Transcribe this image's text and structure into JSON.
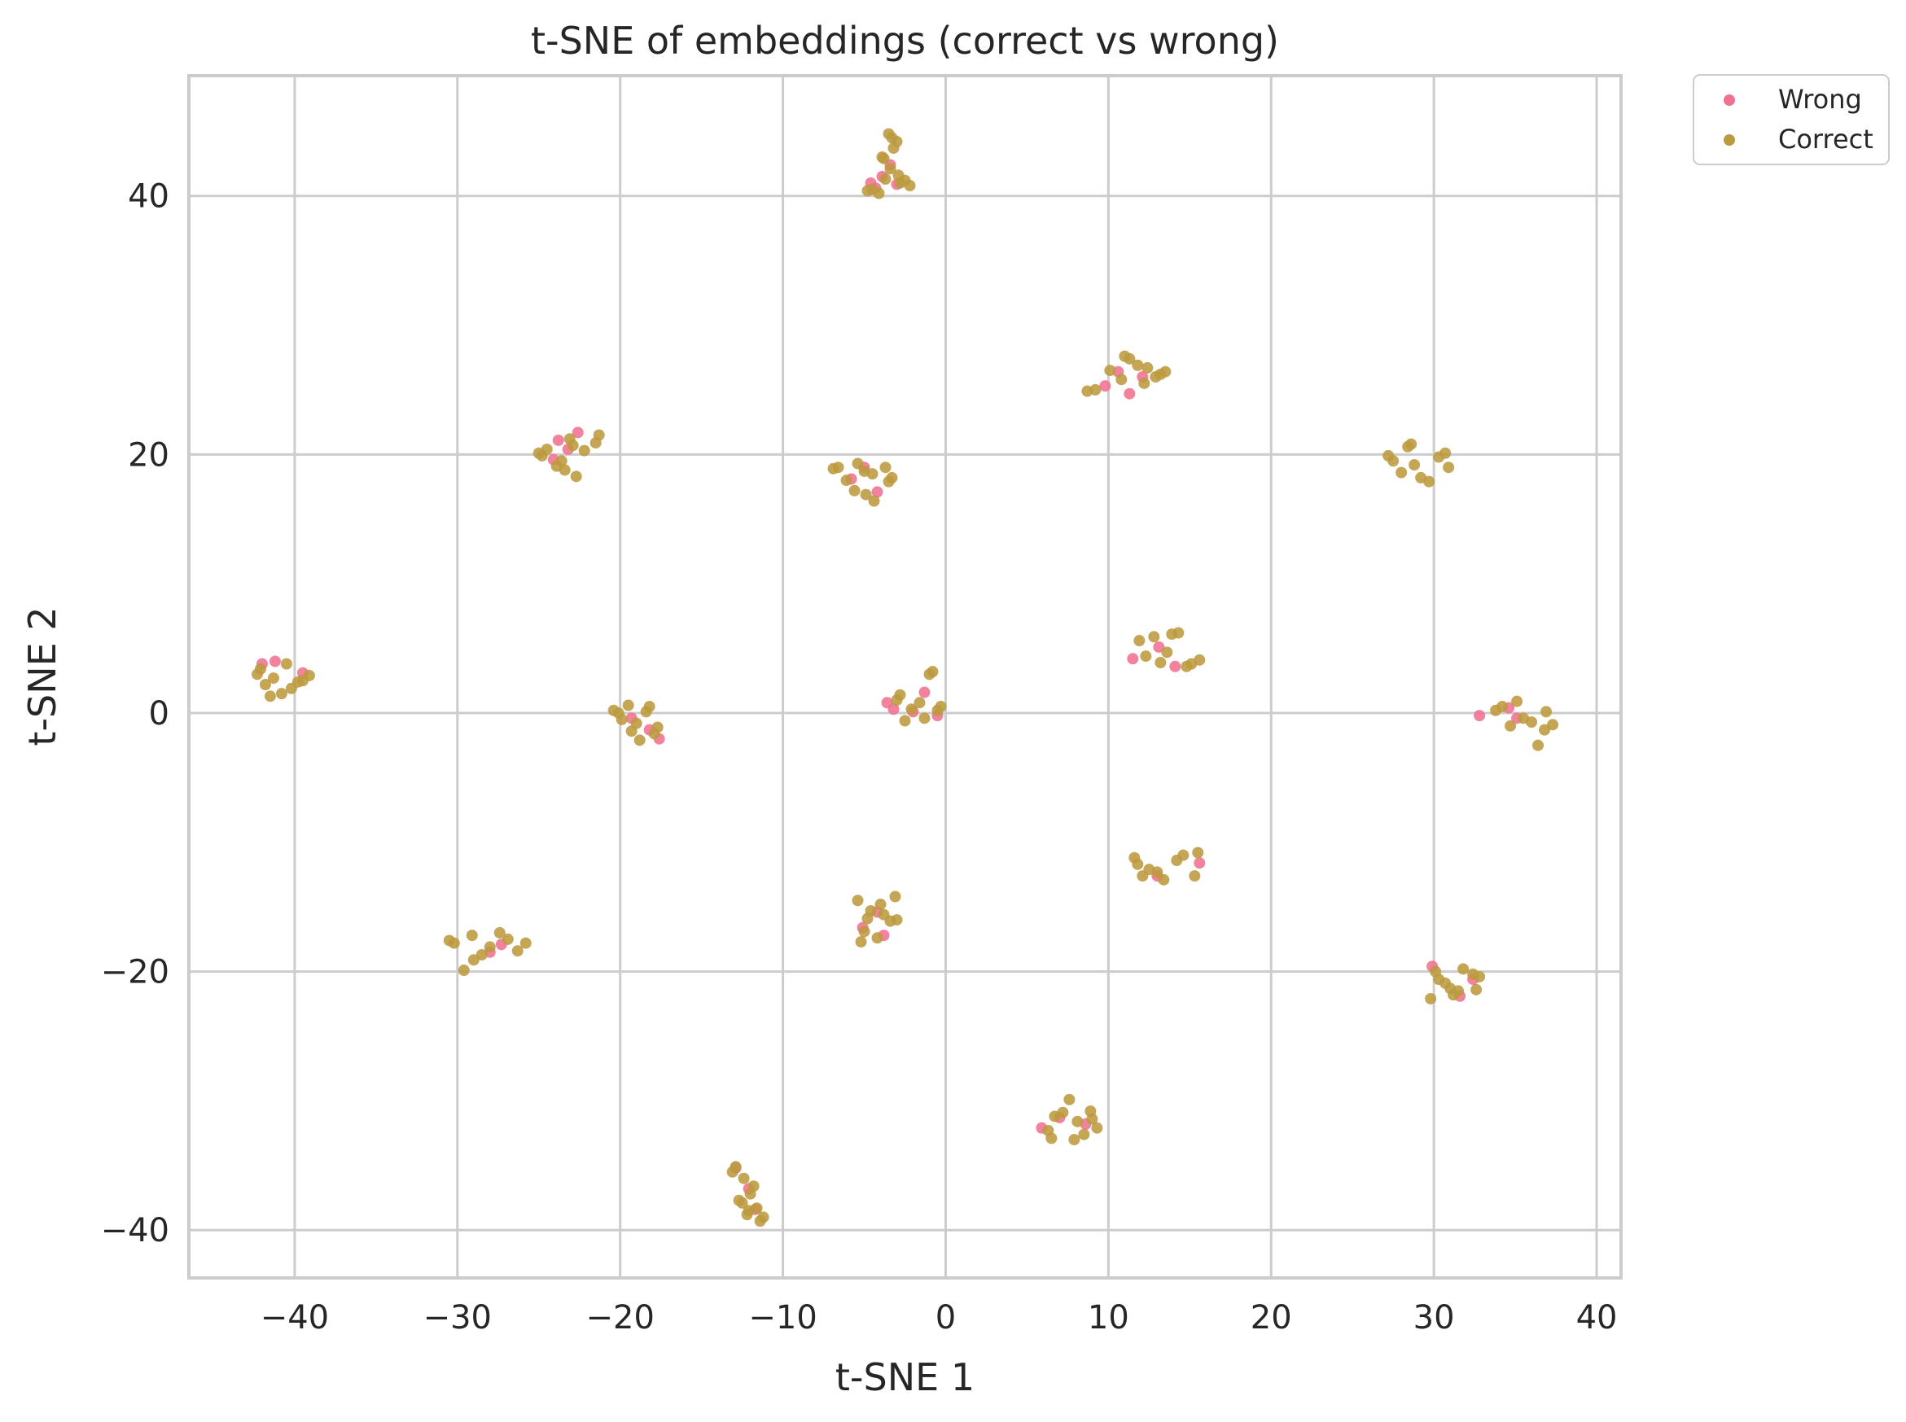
{
  "chart_data": {
    "type": "scatter",
    "title": "t-SNE of embeddings (correct vs wrong)",
    "xlabel": "t-SNE 1",
    "ylabel": "t-SNE 2",
    "xlim": [
      -46.5,
      41.5
    ],
    "ylim": [
      -43.7,
      49.3
    ],
    "xticks": [
      -40,
      -30,
      -20,
      -10,
      0,
      10,
      20,
      30,
      40
    ],
    "yticks": [
      -40,
      -20,
      0,
      20,
      40
    ],
    "xtick_labels": [
      "−40",
      "−30",
      "−20",
      "−10",
      "0",
      "10",
      "20",
      "30",
      "40"
    ],
    "ytick_labels": [
      "−40",
      "−20",
      "0",
      "20",
      "40"
    ],
    "grid": true,
    "legend_position": "outside upper-right",
    "series": [
      {
        "name": "Wrong",
        "color": "#f0718f",
        "x": [
          -3.9,
          -3.4,
          -4.3,
          -3.0,
          -4.6,
          -22.6,
          -23.8,
          -23.2,
          -24.1,
          -5.8,
          -5.0,
          -4.2,
          11.3,
          9.8,
          12.1,
          10.6,
          -42.0,
          -41.2,
          -39.5,
          -18.2,
          -17.6,
          -19.3,
          -3.6,
          -2.0,
          -1.3,
          -3.2,
          -0.5,
          11.5,
          14.1,
          13.1,
          32.8,
          34.6,
          35.1,
          15.6,
          13.0,
          -4.2,
          -5.1,
          -3.8,
          -28.0,
          -27.3,
          31.6,
          29.9,
          32.4,
          7.0,
          5.9,
          8.6,
          -12.1,
          -11.7,
          -12.9
        ],
        "y": [
          41.5,
          42.4,
          40.6,
          40.9,
          41.0,
          21.7,
          21.1,
          20.4,
          19.6,
          18.1,
          19.0,
          17.1,
          24.7,
          25.3,
          26.0,
          26.4,
          3.8,
          4.0,
          3.1,
          -1.3,
          -2.0,
          -0.4,
          0.8,
          0.1,
          1.6,
          0.3,
          -0.2,
          4.2,
          3.6,
          5.1,
          -0.2,
          0.4,
          -0.4,
          -11.6,
          -12.6,
          -15.4,
          -16.6,
          -17.2,
          -18.5,
          -17.9,
          -21.9,
          -19.6,
          -20.6,
          -31.3,
          -32.1,
          -31.8,
          -36.8,
          -38.4,
          -35.2
        ]
      },
      {
        "name": "Correct",
        "color": "#bc9a3e",
        "x": [
          -3.5,
          -3.2,
          -3.8,
          -3.4,
          -3.0,
          -3.7,
          -2.8,
          -4.1,
          -2.5,
          -4.5,
          -3.9,
          -2.2,
          -4.8,
          -3.3,
          -2.9,
          -24.5,
          -23.1,
          -22.2,
          -21.3,
          -24.8,
          -23.9,
          -22.7,
          -21.5,
          -25.0,
          -23.4,
          -22.9,
          -23.6,
          -6.6,
          -5.4,
          -4.5,
          -3.7,
          -6.1,
          -4.9,
          -3.5,
          -5.0,
          -4.4,
          -6.9,
          -3.3,
          -5.6,
          9.2,
          10.1,
          11.3,
          12.4,
          13.2,
          10.8,
          11.8,
          12.9,
          8.7,
          11.0,
          12.2,
          13.5,
          -42.1,
          -41.3,
          -40.5,
          -39.8,
          -39.1,
          -41.8,
          -40.2,
          -39.5,
          -42.3,
          -40.8,
          -41.5,
          -20.1,
          -19.5,
          -18.4,
          -17.7,
          -19.0,
          -18.8,
          -19.9,
          -17.9,
          -20.4,
          -18.2,
          -19.3,
          -3.0,
          -2.1,
          -1.0,
          -0.5,
          -1.6,
          -2.5,
          -0.3,
          -0.8,
          -2.8,
          -1.3,
          11.9,
          12.8,
          13.6,
          14.3,
          15.1,
          12.3,
          13.2,
          14.8,
          13.9,
          15.6,
          34.2,
          35.1,
          36.0,
          36.8,
          37.3,
          35.5,
          36.4,
          33.8,
          34.7,
          36.9,
          11.6,
          12.5,
          13.4,
          14.2,
          15.3,
          12.1,
          13.0,
          14.6,
          15.5,
          11.8,
          -5.4,
          -4.6,
          -3.8,
          -3.1,
          -5.0,
          -4.2,
          -3.4,
          -5.2,
          -4.0,
          -3.0,
          -4.8,
          -30.2,
          -29.1,
          -28.0,
          -26.9,
          -25.8,
          -29.6,
          -28.5,
          -27.4,
          -30.5,
          -29.0,
          -26.3,
          27.5,
          28.4,
          29.2,
          30.3,
          30.9,
          28.0,
          28.8,
          27.2,
          29.7,
          30.7,
          28.6,
          30.1,
          31.0,
          31.8,
          32.6,
          29.8,
          30.7,
          31.5,
          32.4,
          30.3,
          31.2,
          32.8,
          6.3,
          7.2,
          8.1,
          8.9,
          9.3,
          7.6,
          8.5,
          6.7,
          7.9,
          9.0,
          6.5,
          -12.9,
          -12.4,
          -12.0,
          -11.6,
          -11.2,
          -12.7,
          -12.2,
          -11.8,
          -11.4,
          -12.5,
          -12.1,
          -13.1
        ],
        "y": [
          44.8,
          43.7,
          42.9,
          42.1,
          44.2,
          41.3,
          41.0,
          40.2,
          41.2,
          40.5,
          43.0,
          40.8,
          40.4,
          44.5,
          41.6,
          20.4,
          21.2,
          20.3,
          21.5,
          19.9,
          19.1,
          18.3,
          20.9,
          20.1,
          18.8,
          20.7,
          19.5,
          19.0,
          19.3,
          18.5,
          19.0,
          18.0,
          16.9,
          17.9,
          18.7,
          16.4,
          18.9,
          18.2,
          17.2,
          25.0,
          26.5,
          27.4,
          26.7,
          26.2,
          25.8,
          26.9,
          26.0,
          24.9,
          27.6,
          25.5,
          26.4,
          3.4,
          2.7,
          3.8,
          2.4,
          2.9,
          2.2,
          1.9,
          2.5,
          3.0,
          1.5,
          1.3,
          0.0,
          0.6,
          0.1,
          -1.1,
          -0.8,
          -2.1,
          -0.5,
          -1.6,
          0.2,
          0.5,
          -1.4,
          1.0,
          0.3,
          3.0,
          0.2,
          0.8,
          -0.6,
          0.5,
          3.2,
          1.4,
          -0.4,
          5.6,
          5.9,
          4.7,
          6.2,
          3.8,
          4.4,
          3.9,
          3.6,
          6.1,
          4.1,
          0.5,
          0.9,
          -0.7,
          -1.3,
          -0.9,
          -0.4,
          -2.5,
          0.2,
          -1.0,
          0.1,
          -11.2,
          -12.1,
          -12.9,
          -11.4,
          -12.6,
          -12.6,
          -12.3,
          -11.0,
          -10.8,
          -11.7,
          -14.5,
          -15.3,
          -15.6,
          -14.2,
          -16.9,
          -17.4,
          -16.1,
          -17.7,
          -14.8,
          -16.0,
          -15.9,
          -17.8,
          -17.2,
          -18.1,
          -17.5,
          -17.8,
          -19.9,
          -18.7,
          -17.0,
          -17.6,
          -19.1,
          -18.4,
          19.5,
          20.6,
          18.2,
          19.8,
          19.0,
          18.6,
          19.2,
          19.9,
          17.9,
          20.1,
          20.8,
          -20.0,
          -21.3,
          -19.8,
          -21.4,
          -22.1,
          -20.9,
          -21.5,
          -20.2,
          -20.6,
          -21.8,
          -20.4,
          -32.3,
          -30.9,
          -31.6,
          -30.8,
          -32.1,
          -29.9,
          -32.6,
          -31.2,
          -33.0,
          -31.4,
          -32.9,
          -35.1,
          -36.0,
          -37.2,
          -38.3,
          -39.0,
          -37.7,
          -38.8,
          -36.6,
          -39.3,
          -37.9,
          -38.5,
          -35.5
        ]
      }
    ]
  }
}
